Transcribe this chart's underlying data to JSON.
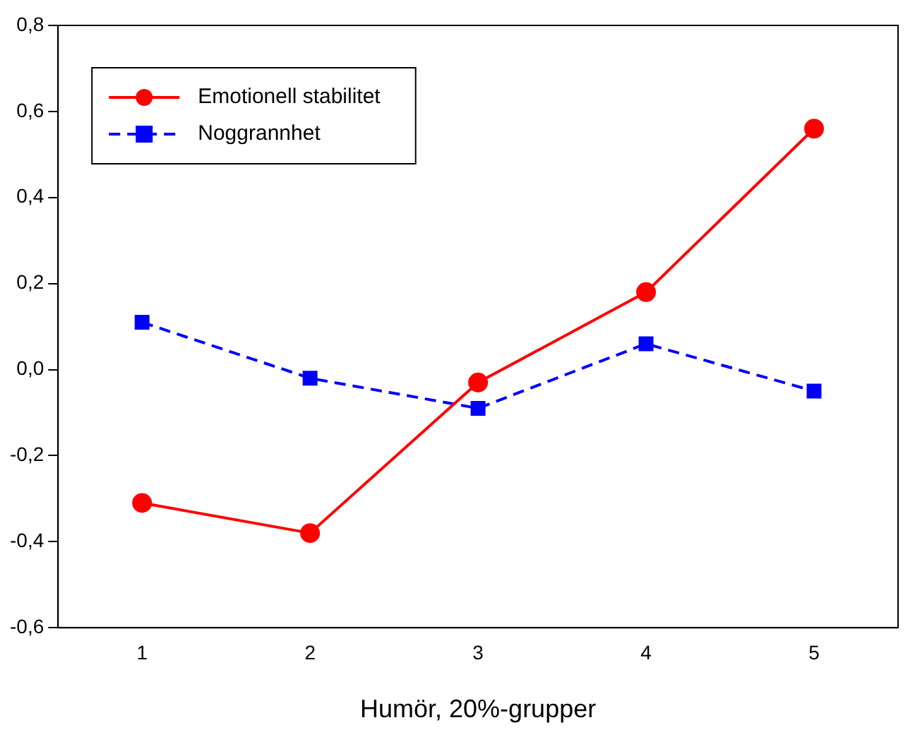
{
  "chart_data": {
    "type": "line",
    "xlabel": "Humör, 20%-grupper",
    "x": [
      1,
      2,
      3,
      4,
      5
    ],
    "xlim": [
      0.5,
      5.5
    ],
    "xticks": [
      1,
      2,
      3,
      4,
      5
    ],
    "ylim": [
      -0.6,
      0.8
    ],
    "yticks": [
      {
        "value": -0.6,
        "label": "-0,6"
      },
      {
        "value": -0.4,
        "label": "-0,4"
      },
      {
        "value": -0.2,
        "label": "-0,2"
      },
      {
        "value": 0,
        "label": "0,0"
      },
      {
        "value": 0.2,
        "label": "0,2"
      },
      {
        "value": 0.4,
        "label": "0,4"
      },
      {
        "value": 0.6,
        "label": "0,6"
      },
      {
        "value": 0.8,
        "label": "0,8"
      }
    ],
    "grid": false,
    "legend": "top left",
    "series": [
      {
        "name": "Emotionell stabilitet",
        "color": "#ff0000",
        "marker": "circle",
        "line_style": "solid",
        "values": [
          -0.31,
          -0.38,
          -0.03,
          0.18,
          0.56
        ]
      },
      {
        "name": "Noggrannhet",
        "color": "#0000ff",
        "marker": "square",
        "line_style": "dashed",
        "values": [
          0.11,
          -0.02,
          -0.09,
          0.06,
          -0.05
        ]
      }
    ]
  }
}
